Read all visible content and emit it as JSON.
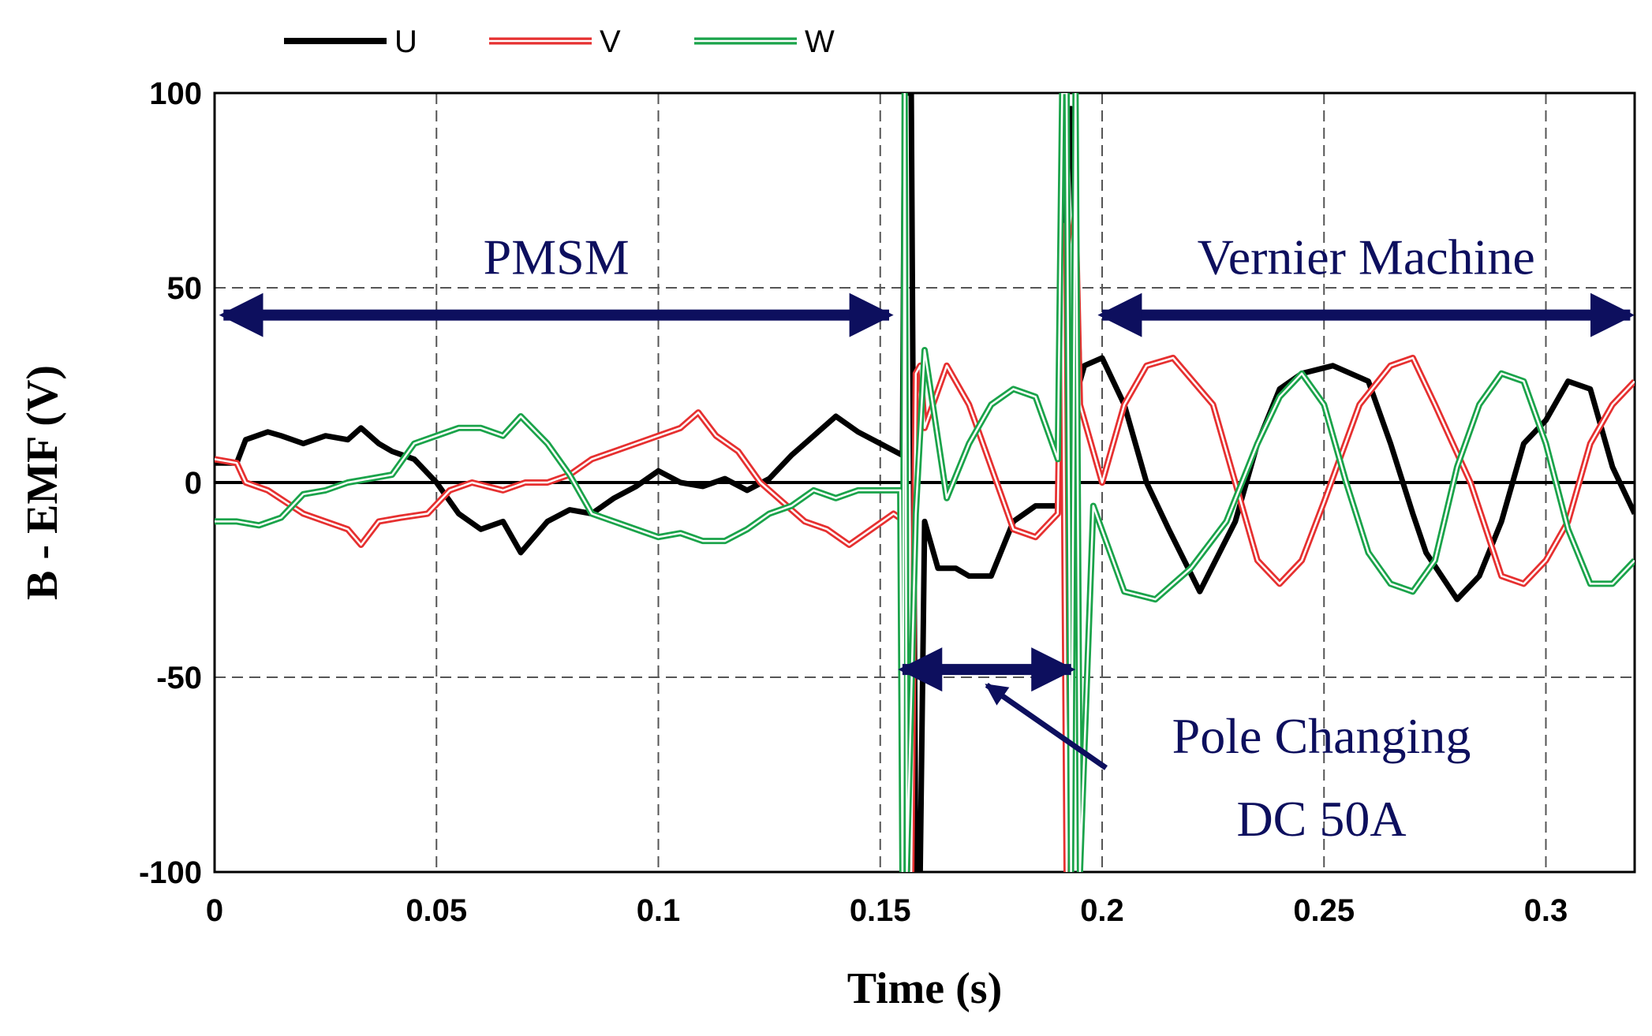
{
  "chart_data": {
    "type": "line",
    "title": "",
    "xlabel": "Time (s)",
    "ylabel": "B - EMF (V)",
    "xlim": [
      0,
      0.32
    ],
    "ylim": [
      -100,
      100
    ],
    "xticks": [
      0,
      0.05,
      0.1,
      0.15,
      0.2,
      0.25,
      0.3
    ],
    "xtick_labels": [
      "0",
      "0.05",
      "0.1",
      "0.15",
      "0.2",
      "0.25",
      "0.3"
    ],
    "yticks": [
      100,
      50,
      0,
      -50,
      -100
    ],
    "ytick_labels": [
      "100",
      "50",
      "0",
      "-50",
      "-100"
    ],
    "grid": true,
    "legend_position": "top-left",
    "series": [
      {
        "name": "U",
        "color": "#000000",
        "x": [
          0,
          0.005,
          0.007,
          0.012,
          0.015,
          0.02,
          0.025,
          0.03,
          0.033,
          0.037,
          0.04,
          0.045,
          0.05,
          0.055,
          0.06,
          0.065,
          0.069,
          0.075,
          0.08,
          0.085,
          0.09,
          0.095,
          0.1,
          0.105,
          0.11,
          0.115,
          0.12,
          0.125,
          0.13,
          0.135,
          0.14,
          0.145,
          0.15,
          0.155,
          0.1555,
          0.156,
          0.157,
          0.158,
          0.159,
          0.16,
          0.163,
          0.167,
          0.17,
          0.175,
          0.18,
          0.185,
          0.19,
          0.191,
          0.192,
          0.193,
          0.194,
          0.195,
          0.196,
          0.2,
          0.205,
          0.21,
          0.215,
          0.222,
          0.23,
          0.235,
          0.24,
          0.245,
          0.252,
          0.26,
          0.265,
          0.27,
          0.273,
          0.28,
          0.285,
          0.29,
          0.295,
          0.3,
          0.305,
          0.31,
          0.315,
          0.32
        ],
        "y": [
          5,
          5,
          11,
          13,
          12,
          10,
          12,
          11,
          14,
          10,
          8,
          6,
          0,
          -8,
          -12,
          -10,
          -18,
          -10,
          -7,
          -8,
          -4,
          -1,
          3,
          0,
          -1,
          1,
          -2,
          1,
          7,
          12,
          17,
          13,
          10,
          7,
          100,
          100,
          100,
          -100,
          -100,
          -10,
          -22,
          -22,
          -24,
          -24,
          -10,
          -6,
          -6,
          -6,
          90,
          96,
          60,
          26,
          30,
          32,
          20,
          0,
          -12,
          -28,
          -10,
          10,
          24,
          28,
          30,
          26,
          10,
          -8,
          -18,
          -30,
          -24,
          -10,
          10,
          16,
          26,
          24,
          4,
          -8
        ]
      },
      {
        "name": "V",
        "color": "#e63030",
        "x": [
          0,
          0.005,
          0.007,
          0.012,
          0.016,
          0.02,
          0.025,
          0.03,
          0.033,
          0.037,
          0.042,
          0.048,
          0.053,
          0.058,
          0.065,
          0.07,
          0.075,
          0.08,
          0.085,
          0.09,
          0.095,
          0.1,
          0.105,
          0.109,
          0.113,
          0.118,
          0.123,
          0.128,
          0.133,
          0.138,
          0.143,
          0.148,
          0.153,
          0.1555,
          0.156,
          0.157,
          0.158,
          0.159,
          0.16,
          0.165,
          0.17,
          0.175,
          0.18,
          0.185,
          0.19,
          0.191,
          0.192,
          0.193,
          0.194,
          0.195,
          0.2,
          0.205,
          0.21,
          0.216,
          0.225,
          0.23,
          0.235,
          0.24,
          0.245,
          0.25,
          0.258,
          0.265,
          0.27,
          0.275,
          0.283,
          0.29,
          0.295,
          0.3,
          0.305,
          0.31,
          0.315,
          0.32
        ],
        "y": [
          6,
          5,
          0,
          -2,
          -5,
          -8,
          -10,
          -12,
          -16,
          -10,
          -9,
          -8,
          -2,
          0,
          -2,
          0,
          0,
          2,
          6,
          8,
          10,
          12,
          14,
          18,
          12,
          8,
          0,
          -5,
          -10,
          -12,
          -16,
          -12,
          -8,
          -10,
          -100,
          -100,
          28,
          30,
          14,
          30,
          20,
          4,
          -12,
          -14,
          -8,
          66,
          -100,
          60,
          70,
          20,
          0,
          20,
          30,
          32,
          20,
          0,
          -20,
          -26,
          -20,
          -5,
          20,
          30,
          32,
          20,
          0,
          -24,
          -26,
          -20,
          -10,
          10,
          20,
          26
        ]
      },
      {
        "name": "W",
        "color": "#1aa34a",
        "x": [
          0,
          0.005,
          0.01,
          0.015,
          0.02,
          0.025,
          0.03,
          0.035,
          0.04,
          0.045,
          0.05,
          0.055,
          0.06,
          0.065,
          0.069,
          0.075,
          0.08,
          0.085,
          0.09,
          0.095,
          0.1,
          0.105,
          0.11,
          0.115,
          0.12,
          0.125,
          0.13,
          0.135,
          0.14,
          0.145,
          0.15,
          0.1545,
          0.155,
          0.1555,
          0.156,
          0.158,
          0.16,
          0.165,
          0.17,
          0.175,
          0.18,
          0.185,
          0.19,
          0.191,
          0.192,
          0.193,
          0.194,
          0.195,
          0.198,
          0.205,
          0.212,
          0.22,
          0.228,
          0.235,
          0.24,
          0.245,
          0.25,
          0.255,
          0.26,
          0.265,
          0.27,
          0.275,
          0.28,
          0.285,
          0.29,
          0.295,
          0.3,
          0.305,
          0.31,
          0.315,
          0.32
        ],
        "y": [
          -10,
          -10,
          -11,
          -9,
          -3,
          -2,
          0,
          1,
          2,
          10,
          12,
          14,
          14,
          12,
          17,
          10,
          2,
          -8,
          -10,
          -12,
          -14,
          -13,
          -15,
          -15,
          -12,
          -8,
          -6,
          -2,
          -4,
          -2,
          -2,
          -2,
          -100,
          100,
          -100,
          -8,
          34,
          -4,
          10,
          20,
          24,
          22,
          6,
          100,
          100,
          -100,
          100,
          -100,
          -6,
          -28,
          -30,
          -22,
          -10,
          10,
          22,
          28,
          20,
          0,
          -18,
          -26,
          -28,
          -20,
          4,
          20,
          28,
          26,
          10,
          -12,
          -26,
          -26,
          -20
        ]
      }
    ],
    "annotations": [
      {
        "text": "PMSM",
        "x_from": 0.002,
        "x_to": 0.152,
        "y": 43
      },
      {
        "text": "Vernier Machine",
        "x_from": 0.2,
        "x_to": 0.319,
        "y": 43
      },
      {
        "text_lines": [
          "Pole Changing",
          "DC 50A"
        ],
        "x_from": 0.155,
        "x_to": 0.193,
        "y": -48,
        "pointer_to": [
          0.174,
          -52
        ]
      }
    ]
  }
}
